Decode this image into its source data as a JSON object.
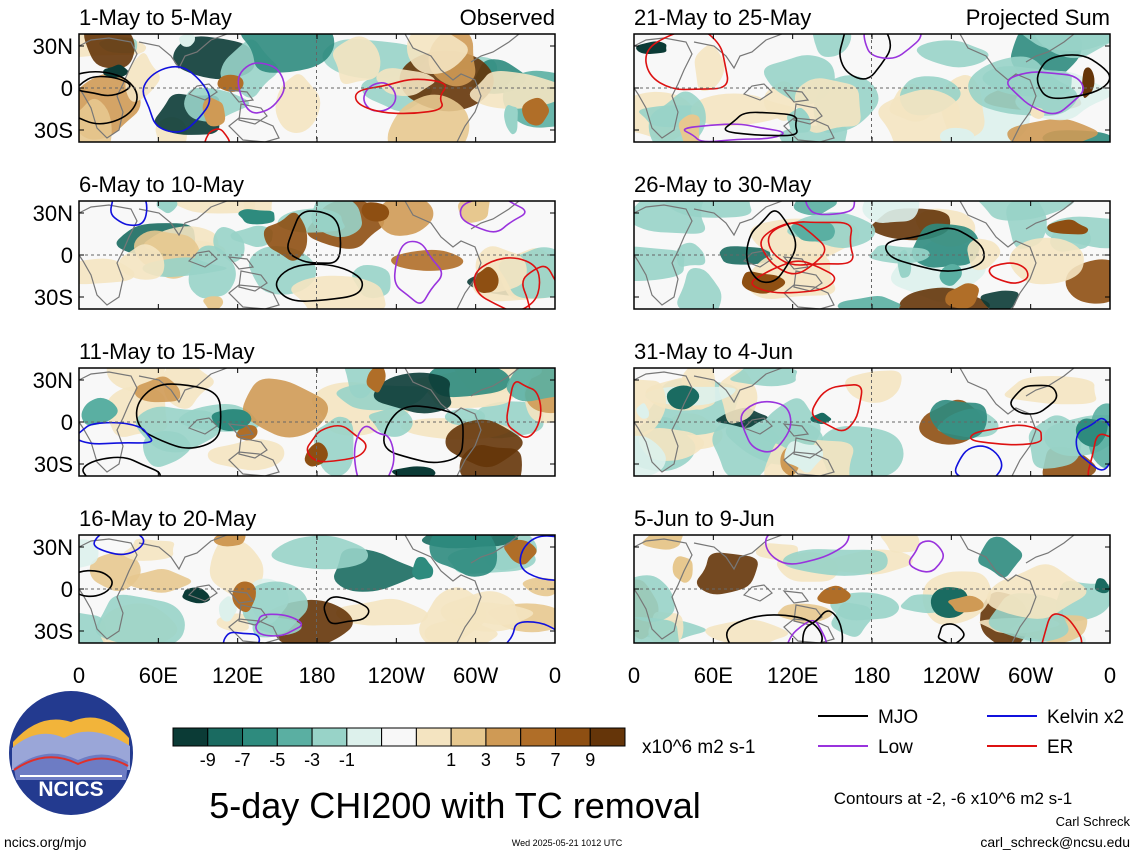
{
  "chart_data": {
    "type": "heatmap",
    "title": "5-day CHI200 with TC removal",
    "contour_note": "Contours at -2, -6 x10^6 m2 s-1",
    "colorbar": {
      "unit": "x10^6 m2 s-1",
      "tick_labels": [
        "-9",
        "-7",
        "-5",
        "-3",
        "-1",
        "1",
        "3",
        "5",
        "7",
        "9"
      ],
      "colors": [
        "#0b3b36",
        "#1a6b61",
        "#2e8b7e",
        "#5aafa2",
        "#98d3c8",
        "#ddf1ec",
        "#f8f8f8",
        "#f4e4c1",
        "#e7c88f",
        "#cf9a55",
        "#b06e28",
        "#8e4f12",
        "#653509"
      ]
    },
    "lon_ticks": [
      "0",
      "60E",
      "120E",
      "180",
      "120W",
      "60W",
      "0"
    ],
    "lat_ticks": [
      "30N",
      "0",
      "30S"
    ],
    "columns": [
      {
        "label": "Observed",
        "panels": [
          "1-May to 5-May",
          "6-May to 10-May",
          "11-May to 15-May",
          "16-May to 20-May"
        ]
      },
      {
        "label": "Projected Sum",
        "panels": [
          "21-May to 25-May",
          "26-May to 30-May",
          "31-May to 4-Jun",
          "5-Jun to 9-Jun"
        ]
      }
    ],
    "legend": [
      {
        "name": "MJO",
        "color": "#000000"
      },
      {
        "name": "Kelvin x2",
        "color": "#1111dd"
      },
      {
        "name": "Low",
        "color": "#9933dd"
      },
      {
        "name": "ER",
        "color": "#dd1111"
      }
    ]
  },
  "logo": {
    "text": "NCICS"
  },
  "footer": {
    "url": "ncics.org/mjo",
    "timestamp": "Wed 2025-05-21 1012 UTC",
    "author": "Carl Schreck",
    "email": "carl_schreck@ncsu.edu"
  }
}
